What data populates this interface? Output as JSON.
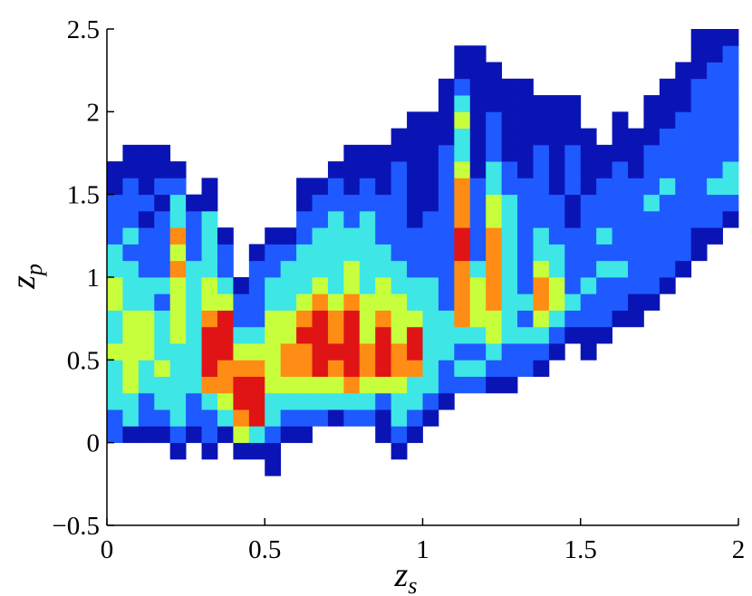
{
  "chart_data": {
    "type": "heatmap",
    "xlabel": {
      "base": "z",
      "sub": "s"
    },
    "ylabel": {
      "base": "z",
      "sub": "p"
    },
    "xlim": [
      0,
      2
    ],
    "ylim": [
      -0.5,
      2.5
    ],
    "xticks": [
      0,
      0.5,
      1,
      1.5,
      2
    ],
    "yticks": [
      {
        "value": -0.5,
        "label": "−0.5"
      },
      0,
      0.5,
      1,
      1.5,
      2,
      2.5
    ],
    "colors": [
      "#0a14b4",
      "#1e5aff",
      "#3ee6e6",
      "#c8ff3c",
      "#ff8c14",
      "#e01414"
    ],
    "xbins": [
      0,
      0.05,
      0.1,
      0.15,
      0.2,
      0.25,
      0.3,
      0.35,
      0.4,
      0.45,
      0.5,
      0.55,
      0.6,
      0.65,
      0.7,
      0.75,
      0.8,
      0.85,
      0.9,
      0.95,
      1,
      1.05,
      1.1,
      1.15,
      1.2,
      1.25,
      1.3,
      1.35,
      1.4,
      1.45,
      1.5,
      1.55,
      1.6,
      1.65,
      1.7,
      1.75,
      1.8,
      1.85,
      1.9,
      1.95,
      2
    ],
    "ybins": [
      -0.2,
      -0.1,
      0,
      0.1,
      0.2,
      0.3,
      0.4,
      0.5,
      0.6,
      0.7,
      0.8,
      0.9,
      1,
      1.1,
      1.2,
      1.3,
      1.4,
      1.5,
      1.6,
      1.7,
      1.8,
      1.9,
      2,
      2.1,
      2.2,
      2.3,
      2.4,
      2.5
    ],
    "z": [
      [
        0,
        0,
        0,
        0,
        0,
        0,
        0,
        0,
        0,
        0,
        1,
        0,
        0,
        0,
        0,
        0,
        0,
        0,
        0,
        0,
        0,
        0,
        0,
        0,
        0,
        0,
        0,
        0,
        0,
        0,
        0,
        0,
        0,
        0,
        0,
        0,
        0,
        0,
        0,
        0
      ],
      [
        0,
        0,
        0,
        0,
        1,
        0,
        1,
        0,
        1,
        1,
        1,
        0,
        0,
        0,
        0,
        0,
        0,
        0,
        1,
        0,
        0,
        0,
        0,
        0,
        0,
        0,
        0,
        0,
        0,
        0,
        0,
        0,
        0,
        0,
        0,
        0,
        0,
        0,
        0,
        0
      ],
      [
        2,
        1,
        1,
        1,
        2,
        1,
        2,
        1,
        4,
        3,
        2,
        1,
        1,
        0,
        0,
        0,
        0,
        1,
        2,
        1,
        0,
        0,
        0,
        0,
        0,
        0,
        0,
        0,
        0,
        0,
        0,
        0,
        0,
        0,
        0,
        0,
        0,
        0,
        0,
        0
      ],
      [
        2,
        3,
        2,
        2,
        3,
        2,
        2,
        3,
        5,
        6,
        3,
        2,
        2,
        2,
        1,
        2,
        2,
        1,
        3,
        2,
        1,
        0,
        0,
        0,
        0,
        0,
        0,
        0,
        0,
        0,
        0,
        0,
        0,
        0,
        0,
        0,
        0,
        0,
        0,
        0
      ],
      [
        3,
        3,
        2,
        3,
        3,
        2,
        3,
        4,
        6,
        6,
        3,
        3,
        3,
        3,
        3,
        3,
        3,
        2,
        3,
        3,
        2,
        1,
        0,
        0,
        0,
        0,
        0,
        0,
        0,
        0,
        0,
        0,
        0,
        0,
        0,
        0,
        0,
        0,
        0,
        0
      ],
      [
        3,
        4,
        3,
        3,
        3,
        3,
        5,
        5,
        6,
        6,
        4,
        4,
        4,
        4,
        4,
        5,
        4,
        4,
        4,
        3,
        3,
        2,
        2,
        2,
        1,
        1,
        0,
        0,
        0,
        0,
        0,
        0,
        0,
        0,
        0,
        0,
        0,
        0,
        0,
        0
      ],
      [
        3,
        4,
        3,
        4,
        3,
        3,
        6,
        5,
        5,
        5,
        4,
        5,
        5,
        6,
        5,
        6,
        5,
        6,
        5,
        5,
        3,
        2,
        3,
        3,
        2,
        2,
        2,
        1,
        0,
        0,
        0,
        0,
        0,
        0,
        0,
        0,
        0,
        0,
        0,
        0
      ],
      [
        4,
        4,
        4,
        3,
        3,
        3,
        6,
        6,
        4,
        4,
        4,
        5,
        5,
        6,
        6,
        6,
        5,
        6,
        5,
        6,
        3,
        3,
        2,
        2,
        3,
        2,
        2,
        2,
        1,
        0,
        1,
        0,
        0,
        0,
        0,
        0,
        0,
        0,
        0,
        0
      ],
      [
        3,
        4,
        4,
        3,
        4,
        3,
        6,
        6,
        3,
        3,
        4,
        4,
        6,
        6,
        5,
        6,
        4,
        6,
        4,
        6,
        3,
        3,
        3,
        3,
        4,
        3,
        3,
        3,
        2,
        1,
        1,
        1,
        0,
        0,
        0,
        0,
        0,
        0,
        0,
        0
      ],
      [
        3,
        4,
        4,
        3,
        4,
        3,
        5,
        6,
        2,
        2,
        4,
        4,
        5,
        6,
        5,
        6,
        4,
        5,
        4,
        4,
        3,
        3,
        5,
        4,
        4,
        3,
        2,
        4,
        3,
        2,
        2,
        2,
        1,
        1,
        0,
        0,
        0,
        0,
        0,
        0
      ],
      [
        4,
        3,
        3,
        2,
        4,
        3,
        4,
        4,
        2,
        2,
        3,
        3,
        4,
        5,
        4,
        5,
        4,
        4,
        4,
        3,
        3,
        2,
        5,
        4,
        5,
        3,
        3,
        5,
        4,
        3,
        2,
        2,
        2,
        1,
        1,
        0,
        0,
        0,
        0,
        0
      ],
      [
        4,
        3,
        3,
        3,
        4,
        3,
        4,
        3,
        1,
        2,
        3,
        3,
        3,
        4,
        3,
        4,
        3,
        4,
        3,
        3,
        3,
        2,
        5,
        4,
        5,
        3,
        2,
        5,
        4,
        2,
        3,
        2,
        2,
        2,
        2,
        1,
        0,
        0,
        0,
        0
      ],
      [
        3,
        3,
        2,
        2,
        5,
        3,
        3,
        2,
        0,
        2,
        2,
        3,
        3,
        3,
        3,
        4,
        3,
        3,
        3,
        2,
        2,
        2,
        5,
        3,
        5,
        3,
        2,
        4,
        3,
        2,
        2,
        3,
        3,
        2,
        2,
        2,
        1,
        0,
        0,
        0
      ],
      [
        3,
        2,
        2,
        2,
        4,
        2,
        3,
        2,
        0,
        1,
        2,
        2,
        3,
        3,
        3,
        3,
        3,
        3,
        2,
        2,
        2,
        2,
        6,
        2,
        5,
        3,
        2,
        3,
        3,
        2,
        2,
        2,
        2,
        2,
        2,
        2,
        2,
        1,
        0,
        0
      ],
      [
        2,
        3,
        2,
        2,
        5,
        2,
        3,
        1,
        0,
        0,
        1,
        1,
        2,
        3,
        3,
        3,
        3,
        2,
        2,
        2,
        2,
        2,
        6,
        2,
        5,
        3,
        2,
        3,
        2,
        2,
        2,
        3,
        2,
        2,
        2,
        2,
        2,
        1,
        1,
        0
      ],
      [
        2,
        2,
        1,
        2,
        3,
        2,
        3,
        0,
        0,
        0,
        0,
        0,
        2,
        2,
        3,
        2,
        3,
        2,
        2,
        1,
        2,
        2,
        5,
        2,
        4,
        3,
        2,
        2,
        2,
        1,
        2,
        2,
        2,
        2,
        2,
        2,
        2,
        2,
        2,
        1
      ],
      [
        2,
        2,
        2,
        1,
        3,
        1,
        1,
        0,
        0,
        0,
        0,
        0,
        1,
        2,
        2,
        2,
        2,
        2,
        2,
        1,
        1,
        2,
        5,
        2,
        4,
        3,
        2,
        2,
        2,
        1,
        2,
        2,
        2,
        2,
        3,
        2,
        2,
        2,
        2,
        2
      ],
      [
        1,
        2,
        1,
        2,
        2,
        0,
        1,
        0,
        0,
        0,
        0,
        0,
        1,
        1,
        2,
        1,
        2,
        1,
        2,
        1,
        1,
        2,
        5,
        2,
        3,
        2,
        2,
        2,
        1,
        2,
        1,
        2,
        2,
        2,
        2,
        3,
        2,
        2,
        3,
        3
      ],
      [
        1,
        1,
        1,
        1,
        1,
        0,
        0,
        0,
        0,
        0,
        0,
        0,
        0,
        0,
        1,
        1,
        1,
        1,
        2,
        1,
        1,
        2,
        4,
        1,
        3,
        2,
        1,
        2,
        1,
        2,
        1,
        1,
        2,
        1,
        2,
        2,
        2,
        2,
        2,
        3
      ],
      [
        0,
        1,
        1,
        1,
        0,
        0,
        0,
        0,
        0,
        0,
        0,
        0,
        0,
        0,
        0,
        1,
        1,
        1,
        1,
        1,
        1,
        2,
        3,
        1,
        2,
        1,
        1,
        2,
        1,
        2,
        1,
        1,
        1,
        1,
        2,
        2,
        2,
        2,
        2,
        2
      ],
      [
        0,
        0,
        0,
        0,
        0,
        0,
        0,
        0,
        0,
        0,
        0,
        0,
        0,
        0,
        0,
        0,
        0,
        0,
        1,
        1,
        1,
        1,
        3,
        1,
        2,
        1,
        1,
        1,
        1,
        1,
        1,
        0,
        1,
        1,
        1,
        2,
        2,
        2,
        2,
        2
      ],
      [
        0,
        0,
        0,
        0,
        0,
        0,
        0,
        0,
        0,
        0,
        0,
        0,
        0,
        0,
        0,
        0,
        0,
        0,
        0,
        1,
        1,
        1,
        4,
        1,
        2,
        1,
        1,
        1,
        1,
        1,
        0,
        0,
        1,
        0,
        1,
        1,
        2,
        2,
        2,
        2
      ],
      [
        0,
        0,
        0,
        0,
        0,
        0,
        0,
        0,
        0,
        0,
        0,
        0,
        0,
        0,
        0,
        0,
        0,
        0,
        0,
        0,
        0,
        1,
        3,
        1,
        1,
        1,
        1,
        1,
        1,
        1,
        0,
        0,
        0,
        0,
        1,
        1,
        1,
        2,
        2,
        2
      ],
      [
        0,
        0,
        0,
        0,
        0,
        0,
        0,
        0,
        0,
        0,
        0,
        0,
        0,
        0,
        0,
        0,
        0,
        0,
        0,
        0,
        0,
        1,
        2,
        1,
        1,
        1,
        1,
        0,
        0,
        0,
        0,
        0,
        0,
        0,
        0,
        1,
        1,
        2,
        2,
        2
      ],
      [
        0,
        0,
        0,
        0,
        0,
        0,
        0,
        0,
        0,
        0,
        0,
        0,
        0,
        0,
        0,
        0,
        0,
        0,
        0,
        0,
        0,
        0,
        1,
        1,
        1,
        0,
        0,
        0,
        0,
        0,
        0,
        0,
        0,
        0,
        0,
        0,
        1,
        1,
        2,
        2
      ],
      [
        0,
        0,
        0,
        0,
        0,
        0,
        0,
        0,
        0,
        0,
        0,
        0,
        0,
        0,
        0,
        0,
        0,
        0,
        0,
        0,
        0,
        0,
        1,
        1,
        0,
        0,
        0,
        0,
        0,
        0,
        0,
        0,
        0,
        0,
        0,
        0,
        0,
        1,
        1,
        2
      ],
      [
        0,
        0,
        0,
        0,
        0,
        0,
        0,
        0,
        0,
        0,
        0,
        0,
        0,
        0,
        0,
        0,
        0,
        0,
        0,
        0,
        0,
        0,
        0,
        0,
        0,
        0,
        0,
        0,
        0,
        0,
        0,
        0,
        0,
        0,
        0,
        0,
        0,
        1,
        1,
        1
      ]
    ]
  }
}
